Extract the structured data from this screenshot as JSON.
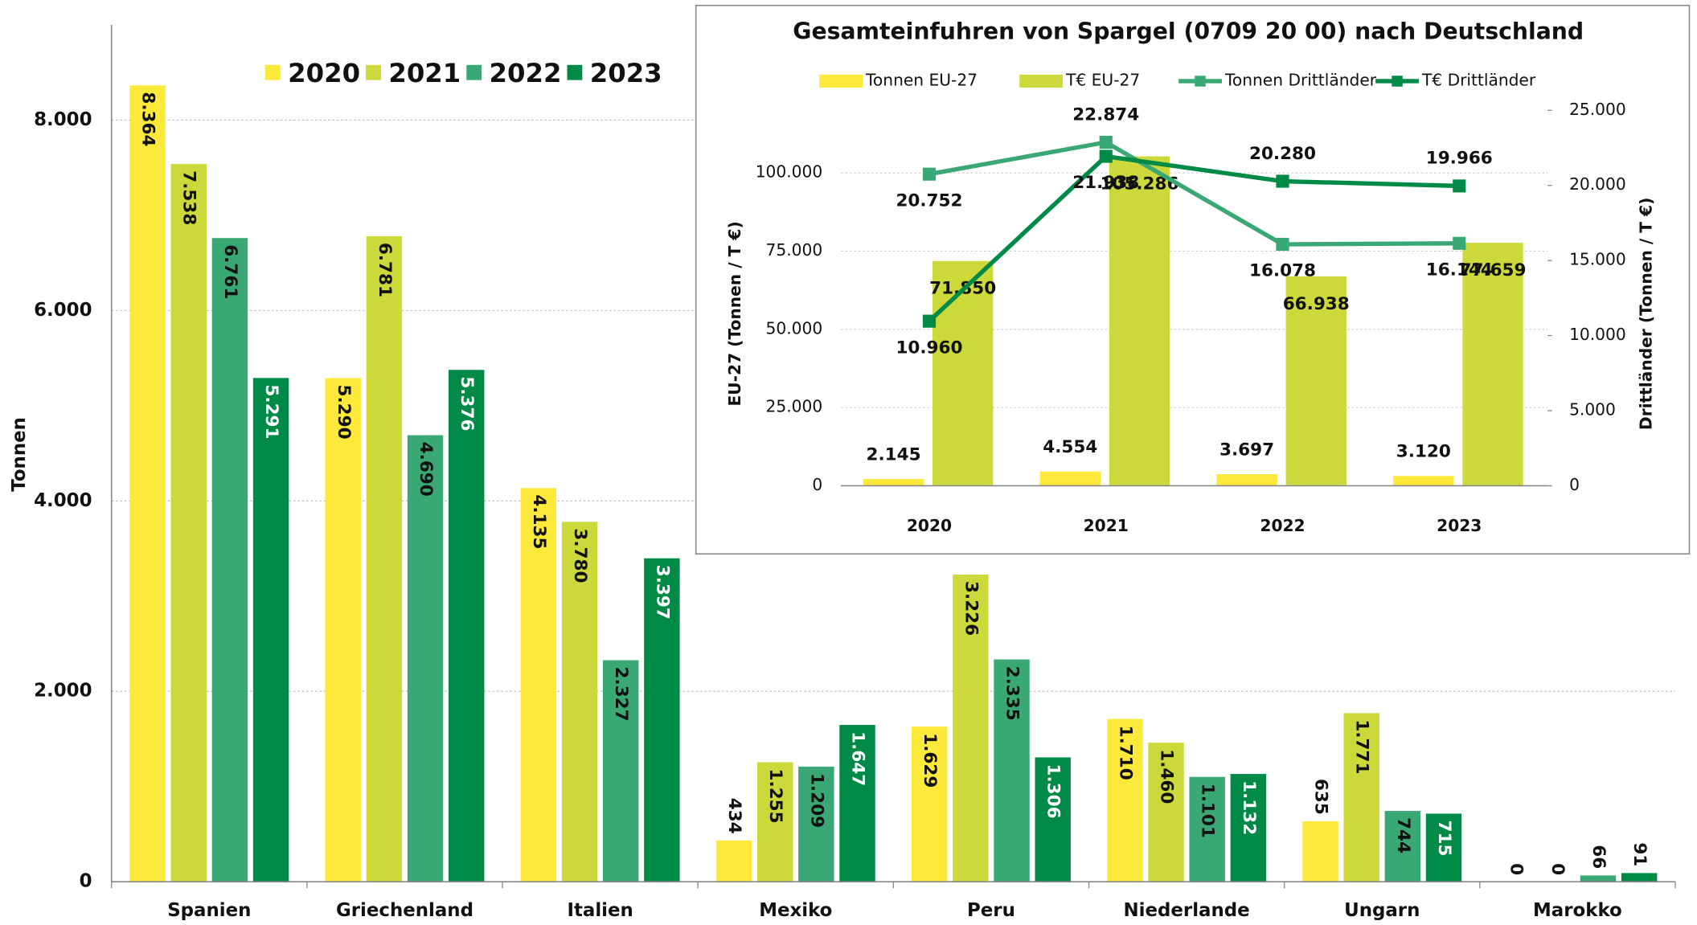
{
  "chart_data": [
    {
      "type": "bar",
      "ylabel": "Tonnen",
      "categories": [
        "Spanien",
        "Griechenland",
        "Italien",
        "Mexiko",
        "Peru",
        "Niederlande",
        "Ungarn",
        "Marokko"
      ],
      "series": [
        {
          "name": "2020",
          "color": "#fde93a",
          "values": [
            8364,
            5290,
            4135,
            434,
            1629,
            1710,
            635,
            0
          ],
          "value_labels": [
            "8.364",
            "5.290",
            "4.135",
            "434",
            "1.629",
            "1.710",
            "635",
            "0"
          ]
        },
        {
          "name": "2021",
          "color": "#cdd93a",
          "values": [
            7538,
            6781,
            3780,
            1255,
            3226,
            1460,
            1771,
            0
          ],
          "value_labels": [
            "7.538",
            "6.781",
            "3.780",
            "1.255",
            "3.226",
            "1.460",
            "1.771",
            "0"
          ]
        },
        {
          "name": "2022",
          "color": "#3aa874",
          "values": [
            6761,
            4690,
            2327,
            1209,
            2335,
            1101,
            744,
            66
          ],
          "value_labels": [
            "6.761",
            "4.690",
            "2.327",
            "1.209",
            "2.335",
            "1.101",
            "744",
            "66"
          ]
        },
        {
          "name": "2023",
          "color": "#008a47",
          "values": [
            5291,
            5376,
            3397,
            1647,
            1306,
            1132,
            715,
            91
          ],
          "value_labels": [
            "5.291",
            "5.376",
            "3.397",
            "1.647",
            "1.306",
            "1.132",
            "715",
            "91"
          ]
        }
      ],
      "ylim": [
        0,
        9000
      ],
      "yticks": [
        0,
        {
          "value": 2000,
          "label": "2.000"
        },
        {
          "value": 4000,
          "label": "4.000"
        },
        {
          "value": 6000,
          "label": "6.000"
        },
        {
          "value": 8000,
          "label": "8.000"
        }
      ],
      "grid": true,
      "legend": "top"
    },
    {
      "type": "combo",
      "title": "Gesamteinfuhren von Spargel (0709 20 00) nach Deutschland",
      "ylabel": "EU-27 (Tonnen / T €)",
      "y2label": "Drittländer (Tonnen / T €)",
      "categories": [
        "2020",
        "2021",
        "2022",
        "2023"
      ],
      "series": [
        {
          "name": "Tonnen EU-27",
          "kind": "bar",
          "color": "#fde93a",
          "values": [
            2145,
            4554,
            3697,
            3120
          ],
          "value_labels": [
            "2.145",
            "4.554",
            "3.697",
            "3.120"
          ]
        },
        {
          "name": "T€ EU-27",
          "kind": "bar",
          "color": "#cdd93a",
          "values": [
            71850,
            105286,
            66938,
            77659
          ],
          "value_labels": [
            "71.850",
            "105.286",
            "66.938",
            "77.659"
          ]
        },
        {
          "name": "Tonnen Drittländer",
          "kind": "line",
          "axis": "y2",
          "color": "#3aa874",
          "values": [
            20752,
            22874,
            16078,
            16144
          ],
          "value_labels": [
            "20.752",
            "22.874",
            "16.078",
            "16.144"
          ]
        },
        {
          "name": "T€ Drittländer",
          "kind": "line",
          "axis": "y2",
          "color": "#008a47",
          "values": [
            10960,
            21938,
            20280,
            19966
          ],
          "value_labels": [
            "10.960",
            "21.938",
            "20.280",
            "19.966"
          ]
        }
      ],
      "ylim": [
        0,
        120000
      ],
      "yticks": [
        0,
        {
          "value": 25000,
          "label": "25.000"
        },
        {
          "value": 50000,
          "label": "50.000"
        },
        {
          "value": 75000,
          "label": "75.000"
        },
        {
          "value": 100000,
          "label": "100.000"
        }
      ],
      "y2lim": [
        0,
        25000
      ],
      "y2ticks": [
        0,
        {
          "value": 5000,
          "label": "5.000"
        },
        {
          "value": 10000,
          "label": "10.000"
        },
        {
          "value": 15000,
          "label": "15.000"
        },
        {
          "value": 20000,
          "label": "20.000"
        },
        {
          "value": 25000,
          "label": "25.000"
        }
      ],
      "grid": true,
      "legend": "top"
    }
  ]
}
